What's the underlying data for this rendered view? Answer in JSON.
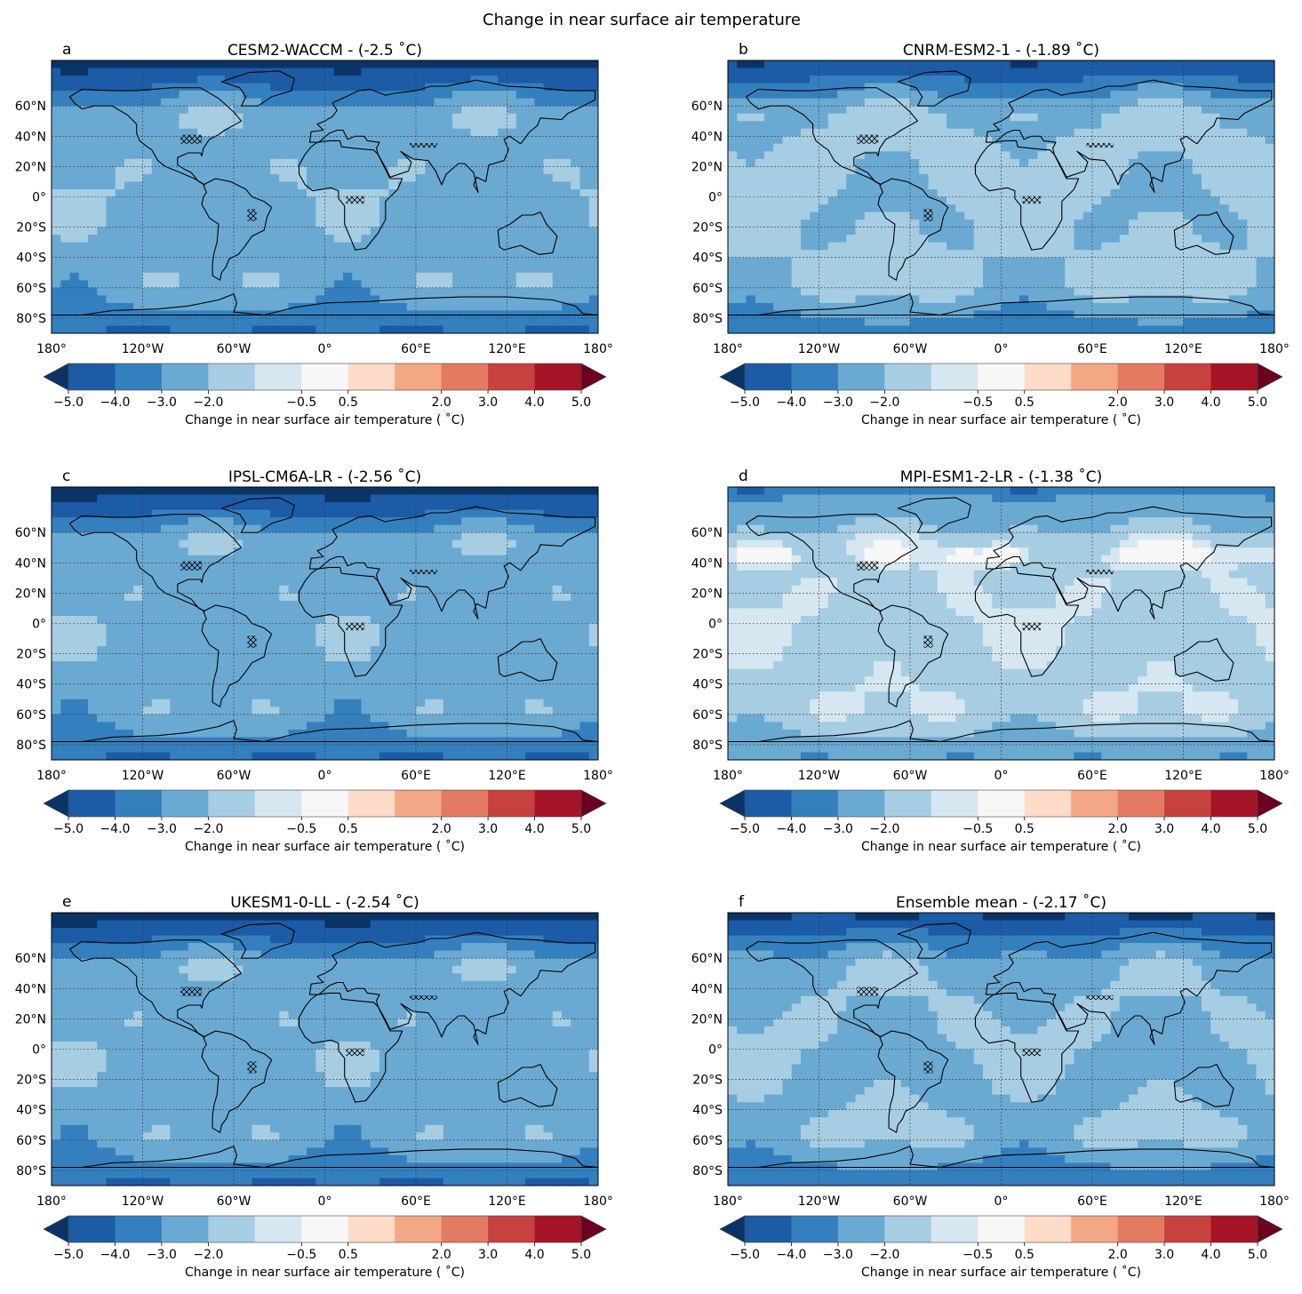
{
  "figure": {
    "title": "Change in near surface air temperature"
  },
  "colorbar": {
    "label": "Change in near surface air temperature ($^\\circ$C)",
    "label_display": "Change in near surface air temperature ( ˚C)",
    "levels": [
      -5.0,
      -4.0,
      -3.0,
      -2.0,
      -1.0,
      -0.5,
      0.5,
      1.0,
      2.0,
      3.0,
      4.0,
      5.0
    ],
    "tick_values": [
      -5.0,
      -4.0,
      -3.0,
      -2.0,
      -0.5,
      0.5,
      2.0,
      3.0,
      4.0,
      5.0
    ],
    "tick_labels": [
      "−5.0",
      "−4.0",
      "−3.0",
      "−2.0",
      "−0.5",
      "0.5",
      "2.0",
      "3.0",
      "4.0",
      "5.0"
    ],
    "colors": [
      "#1c5ba5",
      "#3480bf",
      "#6aaad2",
      "#a7cde3",
      "#d6e7f1",
      "#f7f7f7",
      "#fcdbc8",
      "#f4a784",
      "#e27b62",
      "#c7413f",
      "#a51426"
    ],
    "under_color": "#0b3466",
    "over_color": "#6b0020",
    "extend": "both"
  },
  "axes": {
    "x_tick_labels": [
      "180°",
      "120°W",
      "60°W",
      "0°",
      "60°E",
      "120°E",
      "180°"
    ],
    "x_tick_values": [
      -180,
      -120,
      -60,
      0,
      60,
      120,
      180
    ],
    "y_tick_labels": [
      "60°N",
      "40°N",
      "20°N",
      "0°",
      "20°S",
      "40°S",
      "60°S",
      "80°S"
    ],
    "y_tick_values": [
      60,
      40,
      20,
      0,
      -20,
      -40,
      -60,
      -80
    ],
    "xlim": [
      -180,
      180
    ],
    "ylim": [
      -90,
      90
    ],
    "grid": true,
    "hatch_marker": "xxx"
  },
  "panels": [
    {
      "letter": "a",
      "title": "CESM2-WACCM - (-2.5 $^\\circ$C)",
      "title_display": "CESM2-WACCM - (-2.5 ˚C)",
      "global_mean": -2.5,
      "model": "CESM2-WACCM"
    },
    {
      "letter": "b",
      "title": "CNRM-ESM2-1 - (-1.89 $^\\circ$C)",
      "title_display": "CNRM-ESM2-1 - (-1.89 ˚C)",
      "global_mean": -1.89,
      "model": "CNRM-ESM2-1"
    },
    {
      "letter": "c",
      "title": "IPSL-CM6A-LR - (-2.56 $^\\circ$C)",
      "title_display": "IPSL-CM6A-LR - (-2.56 ˚C)",
      "global_mean": -2.56,
      "model": "IPSL-CM6A-LR"
    },
    {
      "letter": "d",
      "title": "MPI-ESM1-2-LR - (-1.38 $^\\circ$C)",
      "title_display": "MPI-ESM1-2-LR - (-1.38 ˚C)",
      "global_mean": -1.38,
      "model": "MPI-ESM1-2-LR"
    },
    {
      "letter": "e",
      "title": "UKESM1-0-LL - (-2.54 $^\\circ$C)",
      "title_display": "UKESM1-0-LL - (-2.54 ˚C)",
      "global_mean": -2.54,
      "model": "UKESM1-0-LL"
    },
    {
      "letter": "f",
      "title": "Ensemble mean - (-2.17 $^\\circ$C)",
      "title_display": "Ensemble mean - (-2.17 ˚C)",
      "global_mean": -2.17,
      "model": "Ensemble mean"
    }
  ],
  "chart_data": {
    "type": "heatmap",
    "title": "Change in near surface air temperature",
    "colorbar_label": "Change in near surface air temperature ( ˚C)",
    "colorbar_levels": [
      -5.0,
      -4.0,
      -3.0,
      -2.0,
      -1.0,
      -0.5,
      0.5,
      1.0,
      2.0,
      3.0,
      4.0,
      5.0
    ],
    "xlim": [
      -180,
      180
    ],
    "ylim": [
      -90,
      90
    ],
    "panels": [
      {
        "letter": "a",
        "model": "CESM2-WACCM",
        "global_mean_change_C": -2.5
      },
      {
        "letter": "b",
        "model": "CNRM-ESM2-1",
        "global_mean_change_C": -1.89
      },
      {
        "letter": "c",
        "model": "IPSL-CM6A-LR",
        "global_mean_change_C": -2.56
      },
      {
        "letter": "d",
        "model": "MPI-ESM1-2-LR",
        "global_mean_change_C": -1.38
      },
      {
        "letter": "e",
        "model": "UKESM1-0-LL",
        "global_mean_change_C": -2.54
      },
      {
        "letter": "f",
        "model": "Ensemble mean",
        "global_mean_change_C": -2.17
      }
    ]
  }
}
